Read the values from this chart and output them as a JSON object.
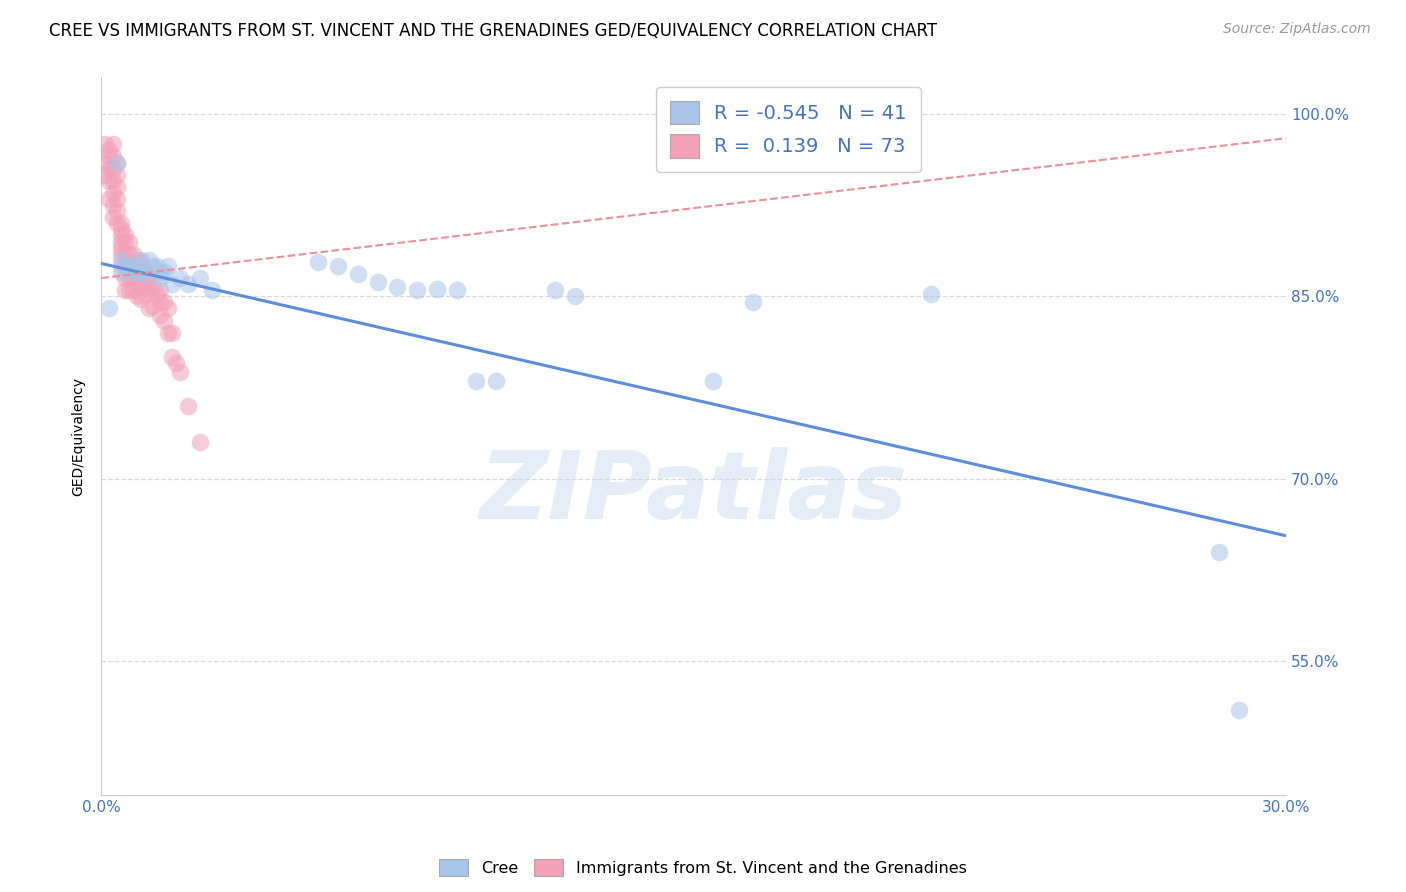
{
  "title": "CREE VS IMMIGRANTS FROM ST. VINCENT AND THE GRENADINES GED/EQUIVALENCY CORRELATION CHART",
  "source": "Source: ZipAtlas.com",
  "ylabel": "GED/Equivalency",
  "xlim": [
    0.0,
    0.3
  ],
  "ylim": [
    0.44,
    1.03
  ],
  "xticks": [
    0.0,
    0.05,
    0.1,
    0.15,
    0.2,
    0.25,
    0.3
  ],
  "xticklabels_show": [
    "0.0%",
    "30.0%"
  ],
  "yticks_right": [
    0.55,
    0.7,
    0.85,
    1.0
  ],
  "yticklabels_right": [
    "55.0%",
    "70.0%",
    "85.0%",
    "100.0%"
  ],
  "watermark": "ZIPatlas",
  "legend_blue_R": "-0.545",
  "legend_blue_N": "41",
  "legend_pink_R": "0.139",
  "legend_pink_N": "73",
  "blue_color": "#a8c4e8",
  "pink_color": "#f4a0b8",
  "blue_line_color": "#5b8dd9",
  "pink_line_color": "#e89098",
  "grid_color": "#d8d8d8",
  "blue_scatter_x": [
    0.002,
    0.004,
    0.005,
    0.005,
    0.006,
    0.007,
    0.008,
    0.008,
    0.009,
    0.01,
    0.01,
    0.011,
    0.012,
    0.013,
    0.014,
    0.015,
    0.015,
    0.016,
    0.017,
    0.018,
    0.02,
    0.022,
    0.025,
    0.028,
    0.055,
    0.06,
    0.065,
    0.07,
    0.075,
    0.08,
    0.085,
    0.09,
    0.095,
    0.1,
    0.115,
    0.12,
    0.155,
    0.165,
    0.21,
    0.283,
    0.288
  ],
  "blue_scatter_y": [
    0.84,
    0.96,
    0.88,
    0.87,
    0.875,
    0.875,
    0.875,
    0.87,
    0.87,
    0.88,
    0.87,
    0.868,
    0.88,
    0.875,
    0.875,
    0.87,
    0.865,
    0.87,
    0.875,
    0.86,
    0.865,
    0.86,
    0.865,
    0.855,
    0.878,
    0.875,
    0.868,
    0.862,
    0.858,
    0.855,
    0.856,
    0.855,
    0.78,
    0.78,
    0.855,
    0.85,
    0.78,
    0.845,
    0.852,
    0.64,
    0.51
  ],
  "pink_scatter_x": [
    0.001,
    0.001,
    0.001,
    0.002,
    0.002,
    0.002,
    0.002,
    0.002,
    0.003,
    0.003,
    0.003,
    0.003,
    0.003,
    0.003,
    0.003,
    0.004,
    0.004,
    0.004,
    0.004,
    0.004,
    0.004,
    0.005,
    0.005,
    0.005,
    0.005,
    0.005,
    0.005,
    0.005,
    0.006,
    0.006,
    0.006,
    0.006,
    0.006,
    0.006,
    0.007,
    0.007,
    0.007,
    0.007,
    0.007,
    0.008,
    0.008,
    0.008,
    0.008,
    0.009,
    0.009,
    0.009,
    0.009,
    0.01,
    0.01,
    0.01,
    0.01,
    0.011,
    0.011,
    0.011,
    0.012,
    0.012,
    0.012,
    0.013,
    0.013,
    0.014,
    0.015,
    0.015,
    0.015,
    0.016,
    0.016,
    0.017,
    0.017,
    0.018,
    0.018,
    0.019,
    0.02,
    0.022,
    0.025
  ],
  "pink_scatter_y": [
    0.975,
    0.96,
    0.95,
    0.97,
    0.965,
    0.955,
    0.945,
    0.93,
    0.975,
    0.965,
    0.955,
    0.945,
    0.935,
    0.925,
    0.915,
    0.96,
    0.95,
    0.94,
    0.93,
    0.92,
    0.91,
    0.91,
    0.905,
    0.9,
    0.895,
    0.89,
    0.885,
    0.875,
    0.9,
    0.895,
    0.885,
    0.875,
    0.865,
    0.855,
    0.895,
    0.885,
    0.875,
    0.865,
    0.855,
    0.885,
    0.875,
    0.865,
    0.855,
    0.88,
    0.87,
    0.86,
    0.85,
    0.878,
    0.868,
    0.858,
    0.848,
    0.872,
    0.862,
    0.852,
    0.865,
    0.855,
    0.84,
    0.858,
    0.842,
    0.852,
    0.855,
    0.845,
    0.835,
    0.845,
    0.83,
    0.84,
    0.82,
    0.82,
    0.8,
    0.795,
    0.788,
    0.76,
    0.73
  ],
  "blue_trend_x": [
    0.0,
    0.3
  ],
  "blue_trend_y": [
    0.877,
    0.653
  ],
  "pink_trend_x": [
    0.0,
    0.3
  ],
  "pink_trend_y": [
    0.865,
    0.98
  ],
  "title_fontsize": 12,
  "axis_label_fontsize": 10,
  "tick_fontsize": 11,
  "legend_fontsize": 14,
  "source_fontsize": 10
}
